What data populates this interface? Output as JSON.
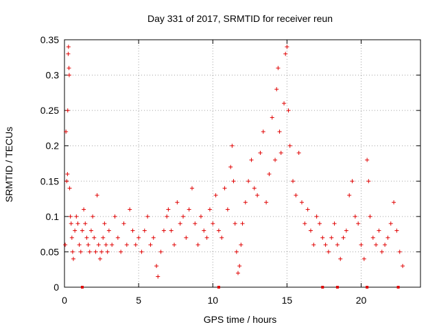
{
  "chart_data": {
    "type": "scatter",
    "title": "Day 331 of 2017, SRMTID for receiver reun",
    "xlabel": "GPS time / hours",
    "ylabel": "SRMTID / TECUs",
    "xlim": [
      0,
      24
    ],
    "ylim": [
      0,
      0.35
    ],
    "grid": true,
    "marker": "+",
    "marker_color": "#e00000",
    "x_ticks": [
      0,
      5,
      10,
      15,
      20
    ],
    "x_tick_labels": [
      "0",
      "5",
      "10",
      "15",
      "20"
    ],
    "y_ticks": [
      0,
      0.05,
      0.1,
      0.15,
      0.2,
      0.25,
      0.3,
      0.35
    ],
    "y_tick_labels": [
      "0",
      "0.05",
      "0.1",
      "0.15",
      "0.2",
      "0.25",
      "0.3",
      "0.35"
    ],
    "series": [
      {
        "name": "SRMTID",
        "points": [
          [
            0.05,
            0.06
          ],
          [
            0.1,
            0.22
          ],
          [
            0.15,
            0.15
          ],
          [
            0.2,
            0.16
          ],
          [
            0.22,
            0.25
          ],
          [
            0.25,
            0.33
          ],
          [
            0.27,
            0.34
          ],
          [
            0.3,
            0.31
          ],
          [
            0.32,
            0.3
          ],
          [
            0.35,
            0.14
          ],
          [
            0.4,
            0.1
          ],
          [
            0.45,
            0.09
          ],
          [
            0.5,
            0.07
          ],
          [
            0.55,
            0.05
          ],
          [
            0.6,
            0.04
          ],
          [
            0.7,
            0.08
          ],
          [
            0.8,
            0.1
          ],
          [
            0.9,
            0.09
          ],
          [
            1.0,
            0.06
          ],
          [
            1.1,
            0.05
          ],
          [
            1.2,
            0.08
          ],
          [
            1.3,
            0.11
          ],
          [
            1.4,
            0.09
          ],
          [
            1.5,
            0.07
          ],
          [
            1.6,
            0.06
          ],
          [
            1.7,
            0.05
          ],
          [
            1.8,
            0.08
          ],
          [
            1.9,
            0.1
          ],
          [
            2.0,
            0.07
          ],
          [
            2.1,
            0.05
          ],
          [
            2.2,
            0.13
          ],
          [
            2.3,
            0.06
          ],
          [
            2.4,
            0.04
          ],
          [
            2.5,
            0.05
          ],
          [
            2.6,
            0.07
          ],
          [
            2.7,
            0.09
          ],
          [
            2.8,
            0.06
          ],
          [
            2.9,
            0.05
          ],
          [
            3.0,
            0.08
          ],
          [
            3.2,
            0.06
          ],
          [
            3.4,
            0.1
          ],
          [
            3.6,
            0.07
          ],
          [
            3.8,
            0.05
          ],
          [
            4.0,
            0.09
          ],
          [
            4.2,
            0.06
          ],
          [
            4.4,
            0.11
          ],
          [
            4.6,
            0.08
          ],
          [
            4.8,
            0.06
          ],
          [
            5.0,
            0.07
          ],
          [
            5.2,
            0.05
          ],
          [
            5.4,
            0.08
          ],
          [
            5.6,
            0.1
          ],
          [
            5.8,
            0.06
          ],
          [
            6.0,
            0.07
          ],
          [
            6.2,
            0.03
          ],
          [
            6.3,
            0.015
          ],
          [
            6.5,
            0.05
          ],
          [
            6.7,
            0.08
          ],
          [
            6.9,
            0.1
          ],
          [
            7.0,
            0.11
          ],
          [
            7.2,
            0.08
          ],
          [
            7.4,
            0.06
          ],
          [
            7.6,
            0.12
          ],
          [
            7.8,
            0.09
          ],
          [
            8.0,
            0.1
          ],
          [
            8.2,
            0.07
          ],
          [
            8.4,
            0.11
          ],
          [
            8.6,
            0.14
          ],
          [
            8.8,
            0.09
          ],
          [
            9.0,
            0.06
          ],
          [
            9.2,
            0.1
          ],
          [
            9.4,
            0.08
          ],
          [
            9.6,
            0.07
          ],
          [
            9.8,
            0.11
          ],
          [
            10.0,
            0.09
          ],
          [
            10.2,
            0.13
          ],
          [
            10.4,
            0.08
          ],
          [
            10.6,
            0.07
          ],
          [
            10.8,
            0.14
          ],
          [
            11.0,
            0.11
          ],
          [
            11.2,
            0.17
          ],
          [
            11.3,
            0.2
          ],
          [
            11.4,
            0.15
          ],
          [
            11.5,
            0.09
          ],
          [
            11.6,
            0.05
          ],
          [
            11.7,
            0.02
          ],
          [
            11.8,
            0.03
          ],
          [
            11.9,
            0.06
          ],
          [
            12.0,
            0.09
          ],
          [
            12.2,
            0.12
          ],
          [
            12.4,
            0.15
          ],
          [
            12.6,
            0.18
          ],
          [
            12.8,
            0.14
          ],
          [
            13.0,
            0.13
          ],
          [
            13.2,
            0.19
          ],
          [
            13.4,
            0.22
          ],
          [
            13.6,
            0.12
          ],
          [
            13.8,
            0.16
          ],
          [
            14.0,
            0.24
          ],
          [
            14.2,
            0.18
          ],
          [
            14.3,
            0.28
          ],
          [
            14.4,
            0.31
          ],
          [
            14.5,
            0.22
          ],
          [
            14.6,
            0.19
          ],
          [
            14.8,
            0.26
          ],
          [
            14.9,
            0.33
          ],
          [
            15.0,
            0.34
          ],
          [
            15.1,
            0.25
          ],
          [
            15.2,
            0.2
          ],
          [
            15.4,
            0.15
          ],
          [
            15.6,
            0.13
          ],
          [
            15.8,
            0.19
          ],
          [
            16.0,
            0.12
          ],
          [
            16.2,
            0.09
          ],
          [
            16.4,
            0.11
          ],
          [
            16.6,
            0.08
          ],
          [
            16.8,
            0.06
          ],
          [
            17.0,
            0.1
          ],
          [
            17.2,
            0.09
          ],
          [
            17.4,
            0.07
          ],
          [
            17.6,
            0.06
          ],
          [
            17.8,
            0.05
          ],
          [
            18.0,
            0.07
          ],
          [
            18.2,
            0.09
          ],
          [
            18.4,
            0.06
          ],
          [
            18.6,
            0.04
          ],
          [
            18.8,
            0.07
          ],
          [
            19.0,
            0.08
          ],
          [
            19.2,
            0.13
          ],
          [
            19.4,
            0.15
          ],
          [
            19.6,
            0.1
          ],
          [
            19.8,
            0.09
          ],
          [
            20.0,
            0.06
          ],
          [
            20.2,
            0.04
          ],
          [
            20.4,
            0.18
          ],
          [
            20.5,
            0.15
          ],
          [
            20.6,
            0.1
          ],
          [
            20.8,
            0.07
          ],
          [
            21.0,
            0.06
          ],
          [
            21.2,
            0.08
          ],
          [
            21.4,
            0.05
          ],
          [
            21.6,
            0.06
          ],
          [
            21.8,
            0.07
          ],
          [
            22.0,
            0.09
          ],
          [
            22.2,
            0.12
          ],
          [
            22.4,
            0.08
          ],
          [
            22.6,
            0.05
          ],
          [
            22.8,
            0.03
          ]
        ]
      }
    ],
    "baseline_markers": [
      1.2,
      10.4,
      17.4,
      18.4,
      20.4,
      22.5
    ]
  }
}
